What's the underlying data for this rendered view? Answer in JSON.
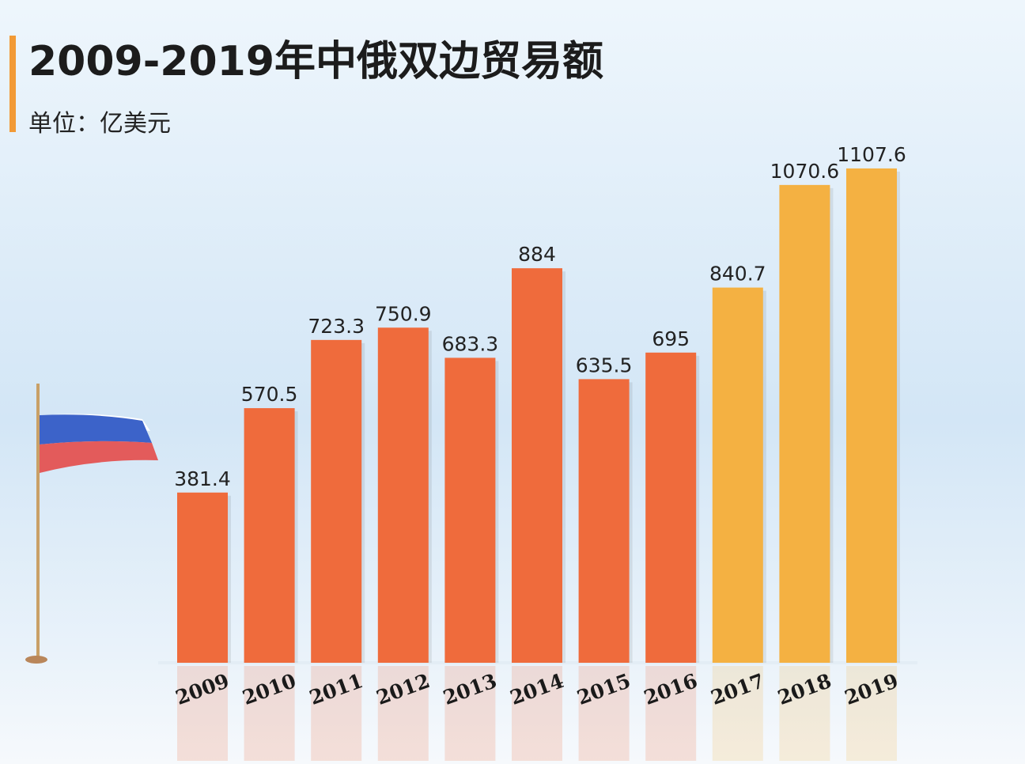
{
  "chart_data": {
    "type": "bar",
    "title": "2009-2019年中俄双边贸易额",
    "subtitle": "单位：亿美元",
    "categories": [
      "2009",
      "2010",
      "2011",
      "2012",
      "2013",
      "2014",
      "2015",
      "2016",
      "2017",
      "2018",
      "2019"
    ],
    "values": [
      381.4,
      570.5,
      723.3,
      750.9,
      683.3,
      884,
      635.5,
      695,
      840.7,
      1070.6,
      1107.6
    ],
    "colors": [
      "#ef6b3c",
      "#ef6b3c",
      "#ef6b3c",
      "#ef6b3c",
      "#ef6b3c",
      "#ef6b3c",
      "#ef6b3c",
      "#ef6b3c",
      "#f4b142",
      "#f4b142",
      "#f4b142"
    ]
  }
}
